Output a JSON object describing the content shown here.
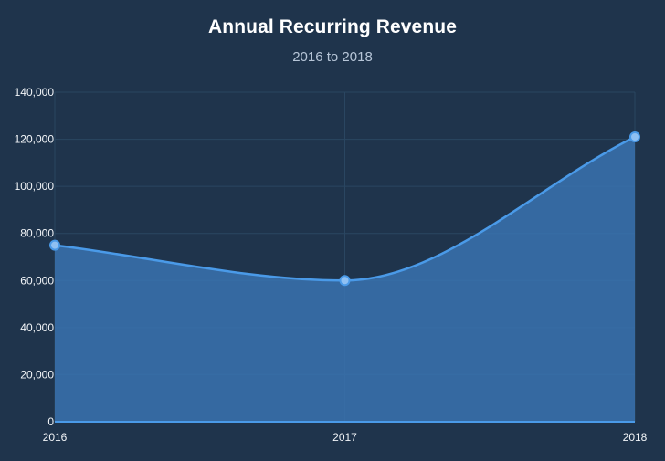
{
  "chart_data": {
    "type": "area",
    "title": "Annual Recurring Revenue",
    "subtitle": "2016 to 2018",
    "x": [
      "2016",
      "2017",
      "2018"
    ],
    "series": [
      {
        "values": [
          75000,
          60000,
          121000
        ]
      }
    ],
    "ylim": [
      0,
      140000
    ],
    "yticks": [
      "0",
      "20,000",
      "40,000",
      "60,000",
      "80,000",
      "100,000",
      "120,000",
      "140,000"
    ],
    "ytick_values": [
      0,
      20000,
      40000,
      60000,
      80000,
      100000,
      120000,
      140000
    ],
    "grid": true,
    "colors": {
      "background": "#1f344c",
      "line": "#4a9ae8",
      "area": "#3a73b0",
      "marker_fill": "#8fc0f2",
      "grid": "#2a4661"
    }
  }
}
